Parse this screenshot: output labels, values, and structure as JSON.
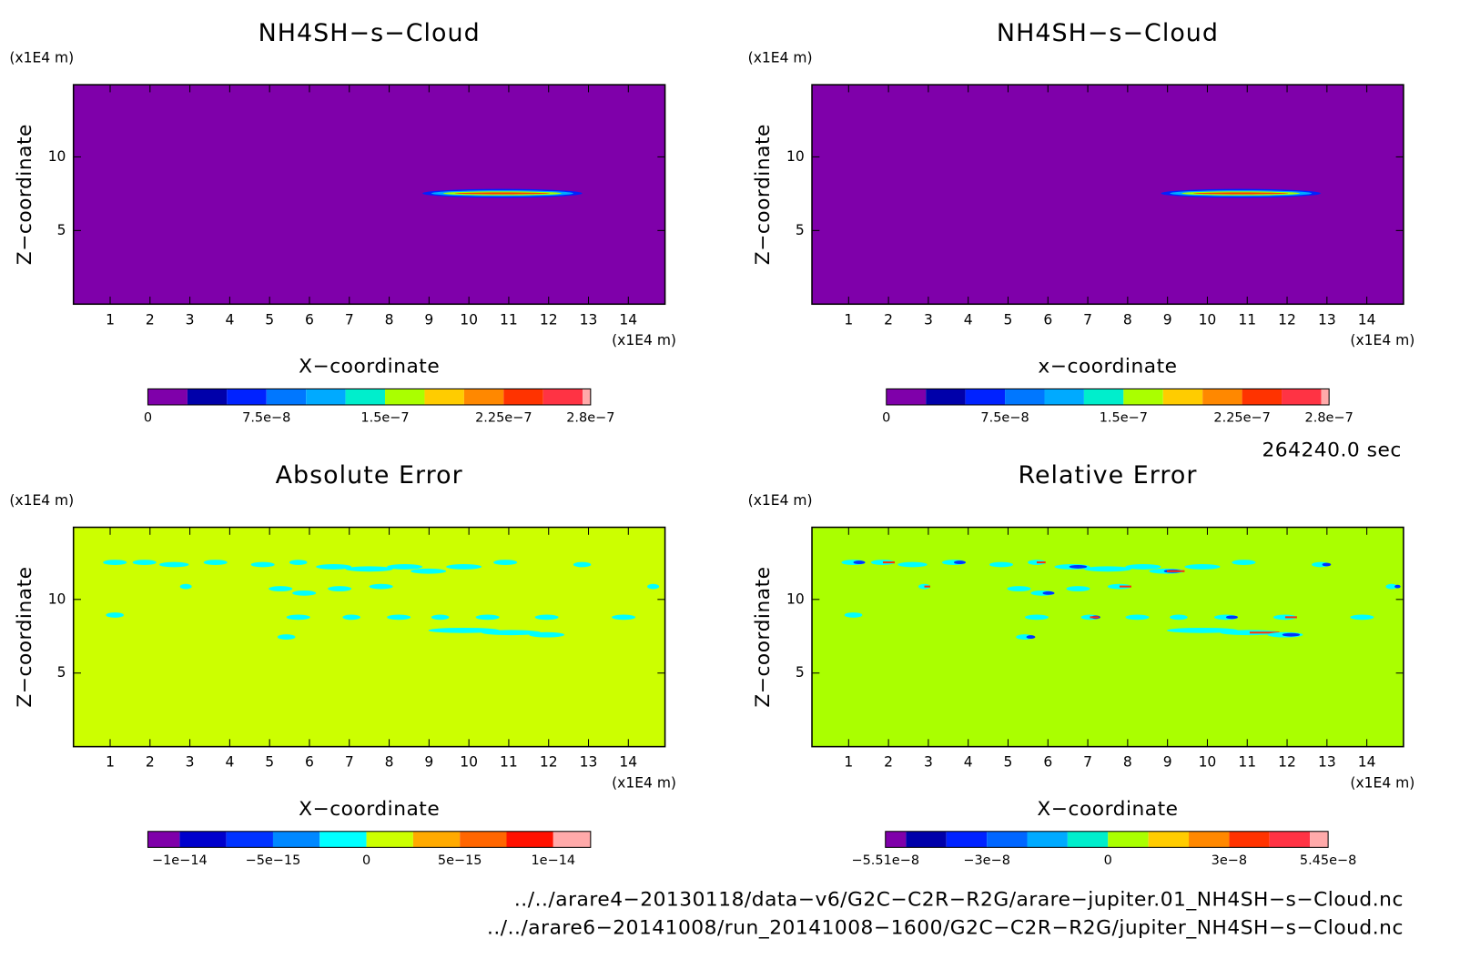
{
  "chart_data": [
    {
      "type": "contour",
      "title": "NH4SH−s−Cloud",
      "xlabel": "X−coordinate",
      "ylabel": "Z−coordinate",
      "xunit": "(x1E4 m)",
      "yunit": "(x1E4 m)",
      "fill_color": "#7f00aa",
      "xlim": [
        0.08,
        14.92
      ],
      "ylim": [
        0,
        14.9
      ],
      "xticks": [
        1,
        2,
        3,
        4,
        5,
        6,
        7,
        8,
        9,
        10,
        11,
        12,
        13,
        14
      ],
      "yticks": [
        5,
        10
      ],
      "colorbar": {
        "levels": [
          0,
          2.5e-08,
          5e-08,
          7.5e-08,
          1e-07,
          1.25e-07,
          1.5e-07,
          1.75e-07,
          2e-07,
          2.25e-07,
          2.5e-07,
          2.75e-07,
          2.8e-07
        ],
        "colors": [
          "#7f00aa",
          "#0000aa",
          "#0022ff",
          "#0077ff",
          "#00aaff",
          "#00eecc",
          "#aaff00",
          "#ffcc00",
          "#ff8800",
          "#ff3300",
          "#ff3344",
          "#ffaaaa"
        ],
        "ticks": [
          0,
          {
            "value": 7.5e-08,
            "label": "7.5e−8"
          },
          {
            "value": 1.5e-07,
            "label": "1.5e−7"
          },
          {
            "value": 2.25e-07,
            "label": "2.25e−7"
          },
          {
            "value": 2.8e-07,
            "label": "2.8e−7"
          }
        ]
      }
    },
    {
      "type": "contour",
      "title": "NH4SH−s−Cloud",
      "xlabel": "x−coordinate",
      "ylabel": "Z−coordinate",
      "xunit": "(x1E4 m)",
      "yunit": "(x1E4 m)",
      "fill_color": "#7f00aa",
      "xlim": [
        0.08,
        14.92
      ],
      "ylim": [
        0,
        14.9
      ],
      "xticks": [
        1,
        2,
        3,
        4,
        5,
        6,
        7,
        8,
        9,
        10,
        11,
        12,
        13,
        14
      ],
      "yticks": [
        5,
        10
      ],
      "colorbar": {
        "levels": [
          0,
          2.5e-08,
          5e-08,
          7.5e-08,
          1e-07,
          1.25e-07,
          1.5e-07,
          1.75e-07,
          2e-07,
          2.25e-07,
          2.5e-07,
          2.75e-07,
          2.8e-07
        ],
        "colors": [
          "#7f00aa",
          "#0000aa",
          "#0022ff",
          "#0077ff",
          "#00aaff",
          "#00eecc",
          "#aaff00",
          "#ffcc00",
          "#ff8800",
          "#ff3300",
          "#ff3344",
          "#ffaaaa"
        ],
        "ticks": [
          0,
          {
            "value": 7.5e-08,
            "label": "7.5e−8"
          },
          {
            "value": 1.5e-07,
            "label": "1.5e−7"
          },
          {
            "value": 2.25e-07,
            "label": "2.25e−7"
          },
          {
            "value": 2.8e-07,
            "label": "2.8e−7"
          }
        ]
      }
    },
    {
      "type": "contour",
      "title": "Absolute Error",
      "xlabel": "X−coordinate",
      "ylabel": "Z−coordinate",
      "xunit": "(x1E4 m)",
      "yunit": "(x1E4 m)",
      "fill_color": "#ccff00",
      "xlim": [
        0.08,
        14.92
      ],
      "ylim": [
        0,
        14.9
      ],
      "xticks": [
        1,
        2,
        3,
        4,
        5,
        6,
        7,
        8,
        9,
        10,
        11,
        12,
        13,
        14
      ],
      "yticks": [
        5,
        10
      ],
      "colorbar": {
        "levels": [
          -1.17e-14,
          -1e-14,
          -7.5e-15,
          -5e-15,
          -2.5e-15,
          0,
          2.5e-15,
          5e-15,
          7.5e-15,
          1e-14,
          1.2e-14
        ],
        "colors": [
          "#7f00aa",
          "#0000cc",
          "#0033ff",
          "#0088ff",
          "#00ffff",
          "#ccff00",
          "#ffaa00",
          "#ff6600",
          "#ff1100",
          "#ffaaaa"
        ],
        "ticks": [
          {
            "value": -1e-14,
            "label": "−1e−14"
          },
          {
            "value": -5e-15,
            "label": "−5e−15"
          },
          0,
          {
            "value": 5e-15,
            "label": "5e−15"
          },
          {
            "value": 1e-14,
            "label": "1e−14"
          }
        ]
      }
    },
    {
      "type": "contour",
      "title": "Relative Error",
      "xlabel": "X−coordinate",
      "ylabel": "Z−coordinate",
      "xunit": "(x1E4 m)",
      "yunit": "(x1E4 m)",
      "fill_color": "#aaff00",
      "xlim": [
        0.08,
        14.92
      ],
      "ylim": [
        0,
        14.9
      ],
      "xticks": [
        1,
        2,
        3,
        4,
        5,
        6,
        7,
        8,
        9,
        10,
        11,
        12,
        13,
        14
      ],
      "yticks": [
        5,
        10
      ],
      "colorbar": {
        "levels": [
          -5.51e-08,
          -5e-08,
          -4e-08,
          -3e-08,
          -2e-08,
          -1e-08,
          0,
          1e-08,
          2e-08,
          3e-08,
          4e-08,
          5e-08,
          5.45e-08
        ],
        "colors": [
          "#7f00aa",
          "#0000aa",
          "#0022ff",
          "#0066ff",
          "#00aaff",
          "#00eecc",
          "#aaff00",
          "#ffcc00",
          "#ff8800",
          "#ff3300",
          "#ff3344",
          "#ffaaaa"
        ],
        "ticks": [
          {
            "value": -5.51e-08,
            "label": "−5.51e−8"
          },
          {
            "value": -3e-08,
            "label": "−3e−8"
          },
          0,
          {
            "value": 3e-08,
            "label": "3e−8"
          },
          {
            "value": 5.45e-08,
            "label": "5.45e−8"
          }
        ]
      }
    }
  ],
  "footer": {
    "time": "264240.0 sec",
    "files": [
      "../../arare4−20130118/data−v6/G2C−C2R−R2G/arare−jupiter.01_NH4SH−s−Cloud.nc",
      "../../arare6−20141008/run_20141008−1600/G2C−C2R−R2G/jupiter_NH4SH−s−Cloud.nc"
    ]
  }
}
